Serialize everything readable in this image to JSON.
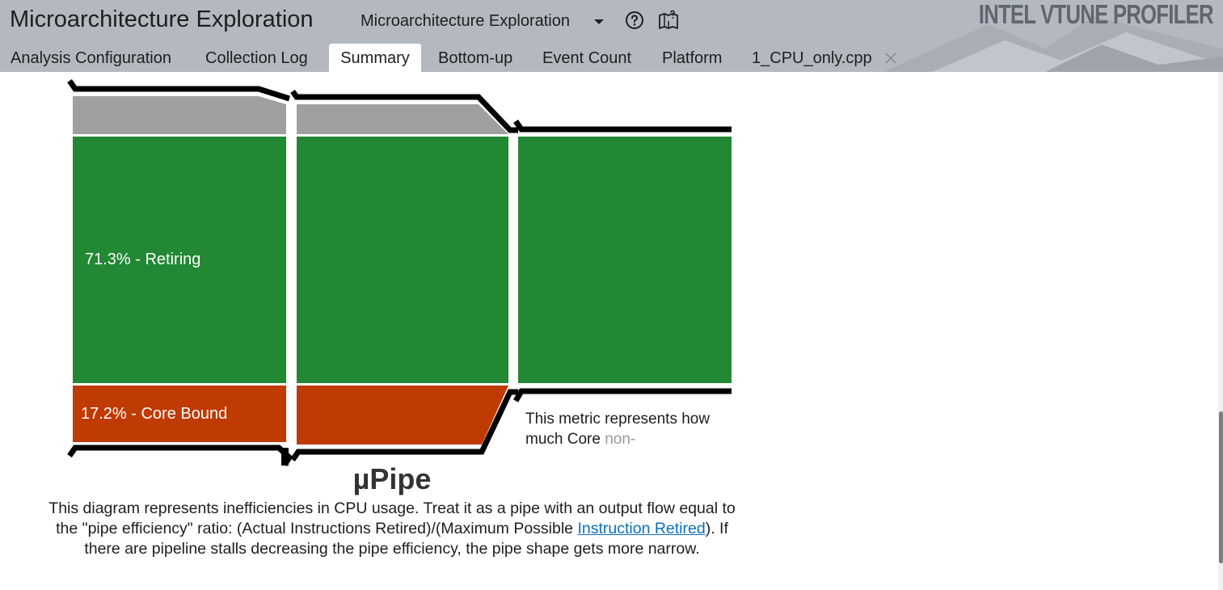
{
  "header": {
    "title": "Microarchitecture Exploration",
    "viewpoint": "Microarchitecture Exploration",
    "brand": "INTEL VTUNE PROFILER",
    "icons": [
      "chevron-down-icon",
      "help-icon",
      "map-icon"
    ]
  },
  "tabs": [
    {
      "label": "Analysis Configuration",
      "active": false
    },
    {
      "label": "Collection Log",
      "active": false
    },
    {
      "label": "Summary",
      "active": true
    },
    {
      "label": "Bottom-up",
      "active": false
    },
    {
      "label": "Event Count",
      "active": false
    },
    {
      "label": "Platform",
      "active": false
    },
    {
      "label": "1_CPU_only.cpp",
      "active": false,
      "closable": true
    }
  ],
  "pipe": {
    "retiring_label": "71.3% - Retiring",
    "core_bound_label": "17.2% - Core Bound",
    "tooltip_text": "This metric represents how much Core",
    "tooltip_faded": "non-",
    "title": "µPipe",
    "description_part1": "This diagram represents inefficiencies in CPU usage. Treat it as a pipe with an output flow equal to the \"pipe efficiency\" ratio: (Actual Instructions Retired)/(Maximum Possible ",
    "description_link": "Instruction Retired",
    "description_part2": "). If there are pipeline stalls decreasing the pipe efficiency, the pipe shape gets more narrow.",
    "colors": {
      "retiring": "#228833",
      "core_bound": "#c03a03",
      "other": "#a0a0a0",
      "outline": "#000000"
    }
  }
}
